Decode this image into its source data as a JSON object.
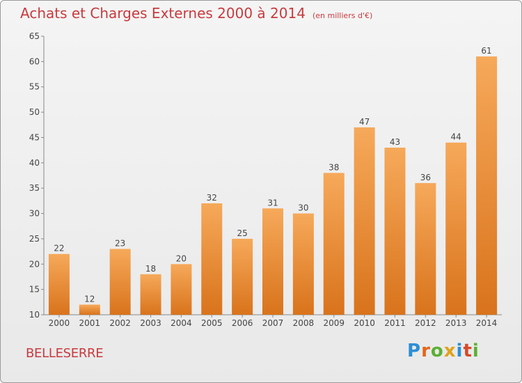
{
  "title": "Achats et Charges Externes 2000 à 2014",
  "unit": "(en milliers d'€)",
  "place": "BELLESERRE",
  "logo": {
    "text": "Proxiti",
    "colors": [
      "#2a8fd6",
      "#e3661b",
      "#5bb033",
      "#e0a21a",
      "#2a8fd6",
      "#d64a2a",
      "#5bb033"
    ]
  },
  "colors": {
    "bar_light": "#f6a95a",
    "bar_dark": "#d9731c",
    "title": "#c83a3e"
  },
  "chart_data": {
    "type": "bar",
    "categories": [
      "2000",
      "2001",
      "2002",
      "2003",
      "2004",
      "2005",
      "2006",
      "2007",
      "2008",
      "2009",
      "2010",
      "2011",
      "2012",
      "2013",
      "2014"
    ],
    "values": [
      22,
      12,
      23,
      18,
      20,
      32,
      25,
      31,
      30,
      38,
      47,
      43,
      36,
      44,
      61
    ],
    "ylim": [
      10,
      65
    ],
    "yticks": [
      10,
      15,
      20,
      25,
      30,
      35,
      40,
      45,
      50,
      55,
      60,
      65
    ],
    "grid": false,
    "legend": "none",
    "data_labels": true
  }
}
